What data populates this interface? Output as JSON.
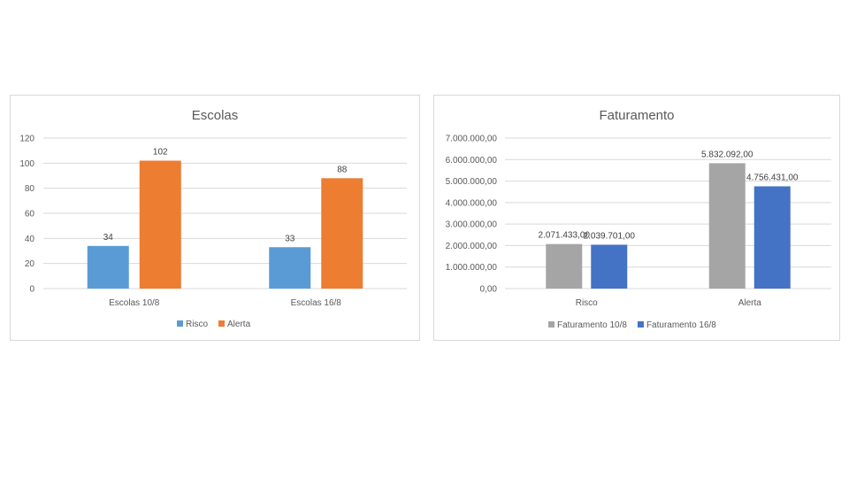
{
  "chart_data": [
    {
      "type": "bar",
      "title": "Escolas",
      "categories": [
        "Escolas 10/8",
        "Escolas 16/8"
      ],
      "series": [
        {
          "name": "Risco",
          "values": [
            34,
            33
          ],
          "labels": [
            "34",
            "33"
          ]
        },
        {
          "name": "Alerta",
          "values": [
            102,
            88
          ],
          "labels": [
            "102",
            "88"
          ]
        }
      ],
      "ylim": [
        0,
        120
      ],
      "yticks": [
        "0",
        "20",
        "40",
        "60",
        "80",
        "100",
        "120"
      ],
      "ytick_values": [
        0,
        20,
        40,
        60,
        80,
        100,
        120
      ],
      "colors": [
        "#5b9bd5",
        "#ed7d31"
      ],
      "legend": "bottom",
      "grid": true,
      "xlabel": "",
      "ylabel": ""
    },
    {
      "type": "bar",
      "title": "Faturamento",
      "categories": [
        "Risco",
        "Alerta"
      ],
      "series": [
        {
          "name": "Faturamento 10/8",
          "values": [
            2071433,
            5832092
          ],
          "labels": [
            "2.071.433,00",
            "5.832.092,00"
          ]
        },
        {
          "name": "Faturamento 16/8",
          "values": [
            2039701,
            4756431
          ],
          "labels": [
            "2.039.701,00",
            "4.756.431,00"
          ]
        }
      ],
      "ylim": [
        0,
        7000000
      ],
      "yticks": [
        "0,00",
        "1.000.000,00",
        "2.000.000,00",
        "3.000.000,00",
        "4.000.000,00",
        "5.000.000,00",
        "6.000.000,00",
        "7.000.000,00"
      ],
      "ytick_values": [
        0,
        1000000,
        2000000,
        3000000,
        4000000,
        5000000,
        6000000,
        7000000
      ],
      "colors": [
        "#a5a5a5",
        "#4472c4"
      ],
      "legend": "bottom",
      "grid": true,
      "xlabel": "",
      "ylabel": ""
    }
  ]
}
